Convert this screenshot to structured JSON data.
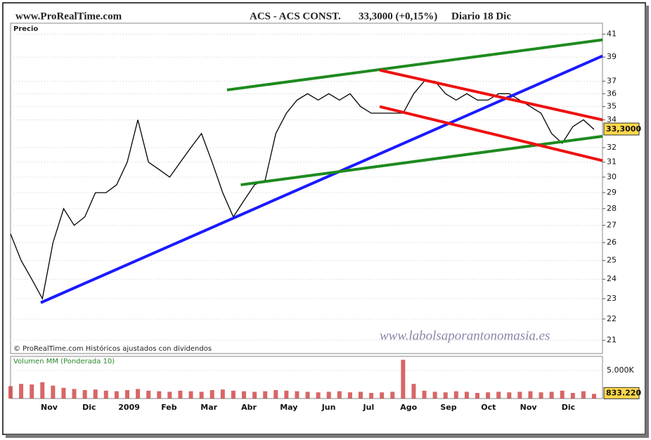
{
  "header": {
    "site": "www.ProRealTime.com",
    "instrument": "ACS - ACS CONST.",
    "quote": "33,3000 (+0,15%)",
    "period": "Diario  18 Dic"
  },
  "chart_data": [
    {
      "type": "line",
      "title": "Precio",
      "log_scale": true,
      "grid": true,
      "color": "#000000",
      "values": [
        26.5,
        25,
        24,
        23,
        26,
        28,
        27,
        27.5,
        29,
        29,
        29.5,
        31,
        34,
        31,
        30.5,
        30,
        31,
        32,
        33,
        31,
        29,
        27.5,
        28.5,
        29.5,
        29.8,
        33,
        34.5,
        35.5,
        36,
        35.5,
        36,
        35.5,
        36,
        35,
        34.5,
        34.5,
        34.5,
        34.5,
        36,
        37,
        37,
        36,
        35.5,
        36,
        35.5,
        35.5,
        36,
        36,
        35.5,
        35,
        34.5,
        33,
        32.3,
        33.5,
        34,
        33.3
      ],
      "xtick_labels": [
        "Nov",
        "Dic",
        "2009",
        "Feb",
        "Mar",
        "Abr",
        "May",
        "Jun",
        "Jul",
        "Ago",
        "Sep",
        "Oct",
        "Nov",
        "Dic"
      ],
      "ylim": [
        20.4,
        42
      ],
      "yticks": [
        21,
        22,
        23,
        24,
        25,
        26,
        27,
        28,
        29,
        30,
        31,
        32,
        34,
        35,
        36,
        37,
        39,
        41
      ],
      "last_value": {
        "value": 33.3,
        "label": "33,3000"
      },
      "trendlines": [
        {
          "color": "#1a1aff",
          "x": [
            2.85,
            55.8
          ],
          "y": [
            22.8,
            39.1
          ]
        },
        {
          "color": "#1e8a1e",
          "x": [
            20.4,
            55.8
          ],
          "y": [
            36.3,
            40.5
          ]
        },
        {
          "color": "#1e8a1e",
          "x": [
            21.7,
            55.8
          ],
          "y": [
            29.5,
            32.8
          ]
        },
        {
          "color": "#ee1111",
          "x": [
            34.8,
            55.8
          ],
          "y": [
            37.9,
            34
          ]
        },
        {
          "color": "#ee1111",
          "x": [
            34.8,
            55.8
          ],
          "y": [
            35,
            31.1
          ]
        }
      ],
      "copyright": "© ProRealTime.com  Históricos ajustados con dividendos",
      "watermark": "www.labolsaporantonomasia.es"
    },
    {
      "type": "bar",
      "title": "Volumen MM (Ponderada 10)",
      "color": "#cc3333",
      "values": [
        2200,
        2600,
        2500,
        2900,
        2300,
        1900,
        1700,
        1500,
        1600,
        1400,
        1300,
        1500,
        1700,
        1400,
        1300,
        1200,
        1400,
        1300,
        1200,
        1500,
        1600,
        1400,
        1300,
        1200,
        1300,
        1500,
        1400,
        1300,
        1200,
        1100,
        1200,
        1300,
        1100,
        1200,
        1000,
        1100,
        1200,
        6900,
        2600,
        1400,
        1200,
        1100,
        1300,
        1200,
        1000,
        1100,
        1200,
        1100,
        1200,
        1300,
        1100,
        1200,
        1400,
        1000,
        1300,
        833.22
      ],
      "ylim": [
        0,
        7500
      ],
      "yticks": [
        {
          "value": 5000,
          "label": "5.000K"
        }
      ],
      "last_value": {
        "value": 833.22,
        "label": "833.220"
      }
    }
  ]
}
